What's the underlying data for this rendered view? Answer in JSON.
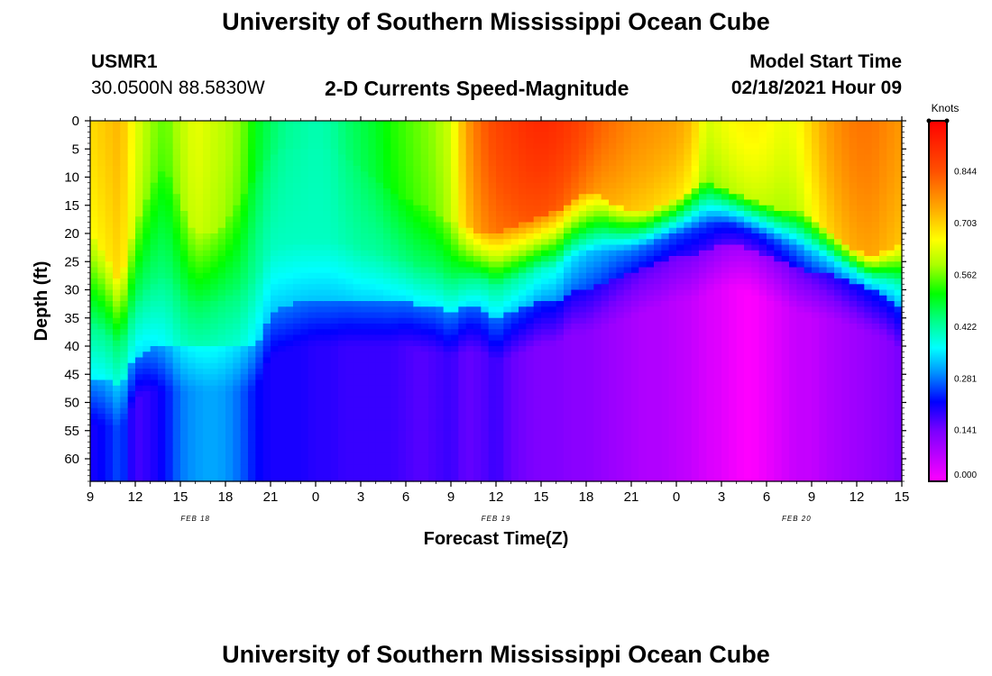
{
  "header": {
    "title": "University of Southern Mississippi Ocean Cube",
    "station": "USMR1",
    "coords": "30.0500N 88.5830W",
    "subtitle": "2-D Currents Speed-Magnitude",
    "model_start_label": "Model Start Time",
    "model_start_value": "02/18/2021 Hour 09"
  },
  "footer": {
    "title": "University of Southern Mississippi Ocean Cube"
  },
  "chart_data": {
    "type": "heatmap",
    "title": "2-D Currents Speed-Magnitude",
    "xlabel": "Forecast Time(Z)",
    "ylabel": "Depth (ft)",
    "x_tick_labels": [
      "9",
      "12",
      "15",
      "18",
      "21",
      "0",
      "3",
      "6",
      "9",
      "12",
      "15",
      "18",
      "21",
      "0",
      "3",
      "6",
      "9",
      "12",
      "15"
    ],
    "x_hours": [
      0,
      3,
      6,
      9,
      12,
      15,
      18,
      21,
      24,
      27,
      30,
      33,
      36,
      39,
      42,
      45,
      48,
      51,
      54
    ],
    "date_labels": [
      {
        "label": "FEB 18",
        "hour": 7
      },
      {
        "label": "FEB 19",
        "hour": 27
      },
      {
        "label": "FEB 20",
        "hour": 47
      }
    ],
    "y_tick_labels": [
      "0",
      "5",
      "10",
      "15",
      "20",
      "25",
      "30",
      "35",
      "40",
      "45",
      "50",
      "55",
      "60"
    ],
    "y_values": [
      0,
      5,
      10,
      15,
      20,
      25,
      30,
      35,
      40,
      45,
      50,
      55,
      60
    ],
    "xlim": [
      0,
      54
    ],
    "ylim": [
      0,
      64
    ],
    "y_inverted": true,
    "colorbar": {
      "unit": "Knots",
      "tick_labels": [
        "0.000",
        "0.141",
        "0.281",
        "0.422",
        "0.562",
        "0.703",
        "0.844"
      ],
      "tick_values": [
        0.0,
        0.141,
        0.281,
        0.422,
        0.562,
        0.703,
        0.844
      ],
      "range": [
        0.0,
        0.98
      ]
    },
    "profiles": {
      "x_hours": [
        0,
        1,
        2,
        3,
        4,
        5,
        6,
        7,
        8,
        9,
        10,
        11,
        12,
        13,
        14,
        15,
        16,
        17,
        18,
        19,
        20,
        21,
        22,
        23,
        24,
        25,
        26,
        27,
        28,
        29,
        30,
        31,
        32,
        33,
        34,
        35,
        36,
        37,
        38,
        39,
        40,
        41,
        42,
        43,
        44,
        45,
        46,
        47,
        48,
        49,
        50,
        51,
        52,
        53,
        54
      ],
      "surface_speed": [
        0.69,
        0.71,
        0.73,
        0.64,
        0.58,
        0.55,
        0.6,
        0.64,
        0.62,
        0.6,
        0.57,
        0.5,
        0.46,
        0.43,
        0.42,
        0.41,
        0.42,
        0.45,
        0.47,
        0.49,
        0.52,
        0.54,
        0.56,
        0.58,
        0.62,
        0.75,
        0.82,
        0.86,
        0.88,
        0.9,
        0.91,
        0.9,
        0.88,
        0.85,
        0.82,
        0.8,
        0.78,
        0.77,
        0.76,
        0.75,
        0.72,
        0.62,
        0.64,
        0.66,
        0.67,
        0.66,
        0.64,
        0.65,
        0.7,
        0.75,
        0.78,
        0.8,
        0.8,
        0.78,
        0.76
      ],
      "surface_layer_depth_ft": [
        20,
        24,
        29,
        18,
        12,
        8,
        14,
        20,
        20,
        18,
        14,
        10,
        6,
        5,
        5,
        5,
        5,
        6,
        8,
        10,
        12,
        14,
        15,
        16,
        18,
        19,
        20,
        20,
        19,
        18,
        17,
        16,
        14,
        13,
        13,
        15,
        16,
        16,
        15,
        14,
        12,
        11,
        12,
        13,
        14,
        15,
        16,
        16,
        17,
        19,
        21,
        23,
        24,
        23,
        22
      ],
      "deep_speed": [
        0.2,
        0.22,
        0.26,
        0.17,
        0.19,
        0.22,
        0.28,
        0.3,
        0.31,
        0.3,
        0.27,
        0.22,
        0.2,
        0.2,
        0.2,
        0.19,
        0.19,
        0.18,
        0.18,
        0.18,
        0.18,
        0.17,
        0.16,
        0.17,
        0.18,
        0.15,
        0.16,
        0.18,
        0.15,
        0.14,
        0.13,
        0.13,
        0.12,
        0.12,
        0.11,
        0.1,
        0.09,
        0.08,
        0.08,
        0.07,
        0.06,
        0.04,
        0.03,
        0.01,
        0.0,
        0.02,
        0.04,
        0.06,
        0.06,
        0.08,
        0.09,
        0.1,
        0.11,
        0.12,
        0.14
      ],
      "thermocline_depth_ft": [
        46,
        46,
        47,
        42,
        40,
        40,
        40,
        40,
        40,
        40,
        40,
        40,
        34,
        33,
        32,
        32,
        32,
        32,
        32,
        32,
        32,
        32,
        33,
        33,
        34,
        33,
        33,
        35,
        34,
        33,
        32,
        32,
        30,
        30,
        29,
        28,
        27,
        26,
        25,
        24,
        24,
        23,
        22,
        22,
        23,
        24,
        25,
        26,
        27,
        27,
        28,
        29,
        30,
        31,
        33
      ],
      "mid_speed": [
        0.44,
        0.44,
        0.46,
        0.44,
        0.44,
        0.44,
        0.46,
        0.47,
        0.46,
        0.45,
        0.45,
        0.42,
        0.4,
        0.4,
        0.4,
        0.4,
        0.4,
        0.41,
        0.42,
        0.42,
        0.43,
        0.44,
        0.45,
        0.45,
        0.46,
        0.45,
        0.44,
        0.44,
        0.43,
        0.42,
        0.4,
        0.39,
        0.36,
        0.33,
        0.32,
        0.3,
        0.29,
        0.28,
        0.27,
        0.26,
        0.25,
        0.25,
        0.24,
        0.24,
        0.24,
        0.25,
        0.27,
        0.3,
        0.33,
        0.36,
        0.38,
        0.4,
        0.42,
        0.42,
        0.42
      ]
    }
  }
}
